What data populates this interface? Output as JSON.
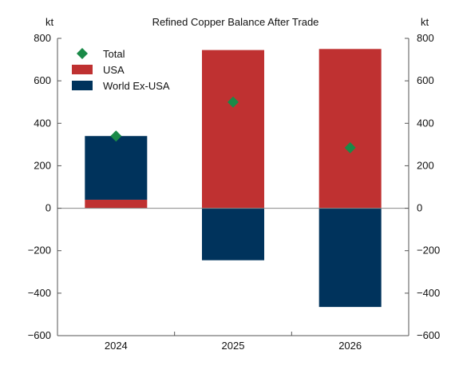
{
  "chart_data": {
    "type": "bar",
    "stacked": true,
    "title": "Refined Copper Balance After Trade",
    "y_unit_left": "kt",
    "y_unit_right": "kt",
    "categories": [
      "2024",
      "2025",
      "2026"
    ],
    "series": [
      {
        "name": "USA",
        "kind": "bar",
        "color": "#bf3131",
        "values": [
          40,
          745,
          750
        ]
      },
      {
        "name": "World Ex-USA",
        "kind": "bar",
        "color": "#00335c",
        "values": [
          300,
          -245,
          -465
        ]
      },
      {
        "name": "Total",
        "kind": "marker",
        "marker": "diamond",
        "color": "#1a8a48",
        "values": [
          340,
          500,
          285
        ]
      }
    ],
    "ylim": [
      -600,
      800
    ],
    "yticks": [
      -600,
      -400,
      -200,
      0,
      200,
      400,
      600,
      800
    ],
    "ytick_labels": [
      "−600",
      "−400",
      "−200",
      "0",
      "200",
      "400",
      "600",
      "800"
    ],
    "legend_position": "top-left",
    "grid": false
  }
}
